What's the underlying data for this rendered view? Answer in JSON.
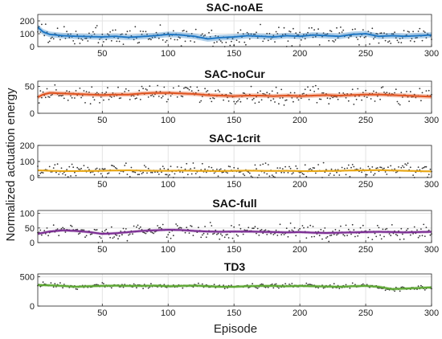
{
  "figure": {
    "ylabel": "Normalized actuation energy",
    "xlabel": "Episode"
  },
  "chart_data": [
    {
      "type": "line",
      "title": "SAC-noAE",
      "xlim": [
        1,
        300
      ],
      "ylim": [
        0,
        250
      ],
      "xticks": [
        50,
        100,
        150,
        200,
        250,
        300
      ],
      "yticks": [
        0,
        100,
        200
      ],
      "color": "#1f77c4",
      "grid": true,
      "mean_x": [
        1,
        5,
        10,
        20,
        30,
        40,
        50,
        60,
        70,
        80,
        90,
        100,
        110,
        120,
        130,
        140,
        150,
        160,
        170,
        180,
        190,
        200,
        210,
        220,
        230,
        240,
        250,
        260,
        270,
        280,
        290,
        300
      ],
      "mean_y": [
        150,
        115,
        95,
        85,
        80,
        78,
        75,
        80,
        72,
        78,
        85,
        95,
        90,
        80,
        60,
        70,
        75,
        85,
        80,
        75,
        85,
        80,
        90,
        85,
        80,
        95,
        100,
        80,
        85,
        80,
        85,
        90
      ],
      "band": 22,
      "scatter_spread": 110
    },
    {
      "type": "line",
      "title": "SAC-noCur",
      "xlim": [
        1,
        300
      ],
      "ylim": [
        0,
        60
      ],
      "xticks": [
        50,
        100,
        150,
        200,
        250,
        300
      ],
      "yticks": [
        0,
        50
      ],
      "color": "#e0531f",
      "grid": true,
      "mean_x": [
        1,
        5,
        10,
        20,
        30,
        40,
        50,
        60,
        70,
        80,
        90,
        100,
        110,
        120,
        130,
        140,
        150,
        160,
        170,
        180,
        190,
        200,
        210,
        220,
        230,
        240,
        250,
        260,
        270,
        280,
        290,
        300
      ],
      "mean_y": [
        30,
        35,
        38,
        37,
        36,
        35,
        34,
        35,
        35,
        37,
        38,
        38,
        37,
        36,
        34,
        33,
        32,
        33,
        33,
        32,
        33,
        32,
        33,
        34,
        33,
        34,
        35,
        35,
        34,
        33,
        32,
        31
      ],
      "band": 4,
      "scatter_spread": 22
    },
    {
      "type": "line",
      "title": "SAC-1crit",
      "xlim": [
        1,
        300
      ],
      "ylim": [
        0,
        200
      ],
      "xticks": [
        50,
        100,
        150,
        200,
        250,
        300
      ],
      "yticks": [
        0,
        100,
        200
      ],
      "color": "#e7a614",
      "grid": true,
      "mean_x": [
        1,
        10,
        20,
        30,
        40,
        50,
        60,
        70,
        80,
        90,
        100,
        110,
        120,
        130,
        140,
        150,
        160,
        170,
        180,
        190,
        200,
        210,
        220,
        230,
        240,
        250,
        260,
        270,
        280,
        290,
        300
      ],
      "mean_y": [
        45,
        42,
        40,
        40,
        41,
        42,
        44,
        45,
        43,
        42,
        42,
        43,
        42,
        41,
        40,
        42,
        43,
        42,
        41,
        42,
        40,
        40,
        41,
        42,
        44,
        45,
        46,
        44,
        42,
        40,
        38
      ],
      "band": 6,
      "scatter_spread": 60
    },
    {
      "type": "line",
      "title": "SAC-full",
      "xlim": [
        1,
        300
      ],
      "ylim": [
        0,
        110
      ],
      "xticks": [
        50,
        100,
        150,
        200,
        250,
        300
      ],
      "yticks": [
        0,
        50,
        100
      ],
      "color": "#7b2d93",
      "grid": true,
      "mean_x": [
        1,
        10,
        20,
        30,
        40,
        50,
        60,
        70,
        80,
        90,
        100,
        110,
        120,
        130,
        140,
        150,
        160,
        170,
        180,
        190,
        200,
        210,
        220,
        230,
        240,
        250,
        260,
        270,
        280,
        290,
        300
      ],
      "mean_y": [
        30,
        38,
        42,
        40,
        36,
        30,
        32,
        36,
        40,
        42,
        44,
        43,
        40,
        38,
        37,
        38,
        38,
        37,
        36,
        35,
        36,
        34,
        33,
        34,
        35,
        36,
        37,
        36,
        35,
        36,
        37
      ],
      "band": 5,
      "scatter_spread": 35
    },
    {
      "type": "line",
      "title": "TD3",
      "xlim": [
        1,
        300
      ],
      "ylim": [
        0,
        550
      ],
      "xticks": [
        50,
        100,
        150,
        200,
        250,
        300
      ],
      "yticks": [
        0,
        500
      ],
      "color": "#5da832",
      "grid": true,
      "mean_x": [
        1,
        10,
        20,
        30,
        40,
        50,
        60,
        70,
        80,
        90,
        100,
        110,
        120,
        130,
        140,
        150,
        160,
        170,
        180,
        190,
        200,
        210,
        220,
        230,
        240,
        250,
        260,
        270,
        280,
        290,
        300
      ],
      "mean_y": [
        360,
        355,
        345,
        330,
        340,
        345,
        350,
        345,
        345,
        350,
        340,
        345,
        350,
        340,
        330,
        330,
        340,
        345,
        345,
        340,
        345,
        340,
        335,
        330,
        340,
        345,
        330,
        290,
        300,
        310,
        320
      ],
      "band": 25,
      "scatter_spread": 60
    }
  ]
}
